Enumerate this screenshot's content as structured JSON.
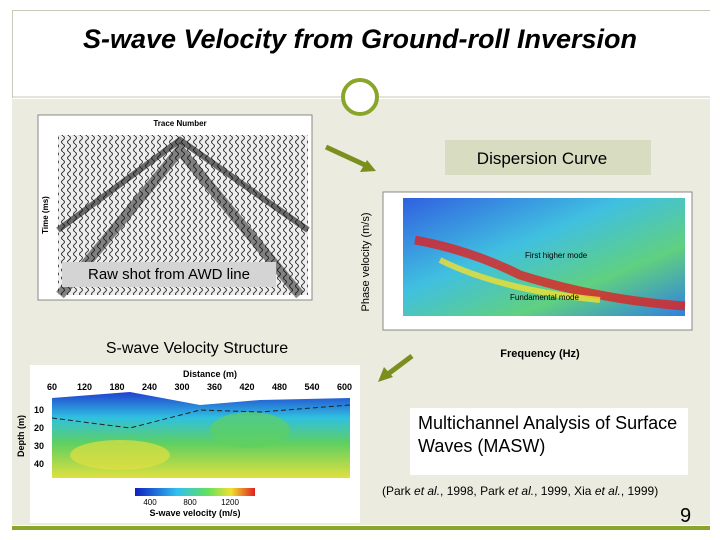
{
  "title": "S-wave Velocity from Ground-roll Inversion",
  "seismic": {
    "header": "Trace Number",
    "y_label": "Time (ms)",
    "caption": "Raw shot from AWD line"
  },
  "dispersion": {
    "heading": "Dispersion Curve",
    "y_label": "Phase velocity (m/s)",
    "x_label": "Frequency (Hz)",
    "annotations": [
      "First higher mode",
      "Fundamental mode"
    ]
  },
  "velocity": {
    "heading": "S-wave Velocity Structure",
    "x_label": "Distance (m)",
    "x_ticks": [
      "60",
      "120",
      "180",
      "240",
      "300",
      "360",
      "420",
      "480",
      "540",
      "600"
    ],
    "y_label": "Depth (m)",
    "y_ticks": [
      "10",
      "20",
      "30",
      "40"
    ],
    "colorbar_ticks": [
      "400",
      "800",
      "1200"
    ],
    "colorbar_label": "S-wave velocity (m/s)"
  },
  "method": "Multichannel Analysis of Surface Waves (MASW)",
  "citation": [
    "(Park ",
    "et al.",
    ", 1998, Park ",
    "et al.",
    ", 1999, Xia ",
    "et al.",
    ", 1999)"
  ],
  "page_number": "9"
}
